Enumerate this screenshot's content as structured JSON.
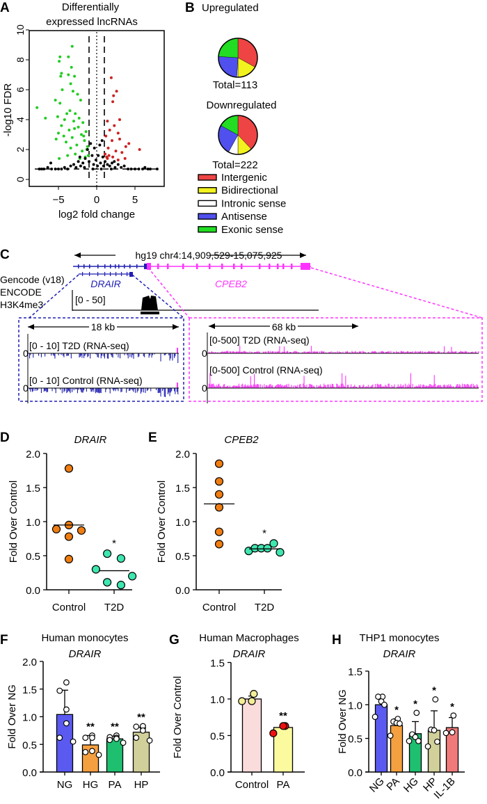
{
  "panels": {
    "A": {
      "letter": "A",
      "title_line1": "Differentially",
      "title_line2": "expressed lncRNAs"
    },
    "B": {
      "letter": "B",
      "up_title": "Upregulated",
      "up_total": "Total=113",
      "down_title": "Downregulated",
      "down_total": "Total=222"
    },
    "C": {
      "letter": "C",
      "locus": "hg19 chr4:14,909,529-15,075,925",
      "track_label_1": "Gencode (v18)",
      "track_label_2": "ENCODE",
      "track_label_3": "H3K4me3",
      "gene_left": "DRAIR",
      "gene_right": "CPEB2",
      "h3k4me3_range": "[0 - 50]",
      "left_box": {
        "span": "18 kb",
        "zero": "0",
        "track1": "[0 - 10] T2D (RNA-seq)",
        "track2": "[0 - 10] Control (RNA-seq)"
      },
      "right_box": {
        "span": "68 kb",
        "zero": "0",
        "track1": "[0-500] T2D (RNA-seq)",
        "track2": "[0-500] Control (RNA-seq)"
      },
      "colors": {
        "drair": "#1f1fb4",
        "cpeb2": "#ff33ff"
      }
    },
    "D": {
      "letter": "D"
    },
    "E": {
      "letter": "E"
    },
    "F": {
      "letter": "F"
    },
    "G": {
      "letter": "G"
    },
    "H": {
      "letter": "H"
    }
  },
  "chart_data": [
    {
      "id": "A",
      "type": "scatter",
      "xlabel": "log2 fold change",
      "ylabel": "-log10 FDR",
      "xlim": [
        -8.8,
        8.8
      ],
      "ylim": [
        0,
        10
      ],
      "xticks": [
        "-5",
        "0",
        "5"
      ],
      "yticks": [
        "0",
        "2",
        "4",
        "6",
        "8",
        "10"
      ],
      "reference_lines": {
        "vertical_dashed": [
          -1,
          1
        ],
        "vertical_dotted": [
          0
        ],
        "horizontal_dashed": [
          0.7
        ]
      },
      "series": [
        {
          "color": "#22cc22",
          "points": [
            [
              -3.2,
              8.9
            ],
            [
              -4.8,
              8.2
            ],
            [
              -3.7,
              8.2
            ],
            [
              -4.9,
              7.9
            ],
            [
              -3.3,
              7.5
            ],
            [
              -4.6,
              7.1
            ],
            [
              -3.7,
              7.0
            ],
            [
              -2.9,
              6.9
            ],
            [
              -4.7,
              6.9
            ],
            [
              -3.4,
              6.4
            ],
            [
              -4.5,
              6.0
            ],
            [
              -3.1,
              5.9
            ],
            [
              -2.5,
              5.7
            ],
            [
              -5.4,
              5.3
            ],
            [
              -4.8,
              5.1
            ],
            [
              -2.1,
              5.3
            ],
            [
              -7.8,
              4.8
            ],
            [
              -6.7,
              4.1
            ],
            [
              -3.5,
              4.6
            ],
            [
              -2.8,
              4.4
            ],
            [
              -5.1,
              4.2
            ],
            [
              -4.2,
              4.0
            ],
            [
              -3.0,
              3.9
            ],
            [
              -1.8,
              3.8
            ],
            [
              -4.6,
              3.6
            ],
            [
              -2.4,
              3.5
            ],
            [
              -3.6,
              3.3
            ],
            [
              -1.4,
              3.2
            ],
            [
              -5.0,
              3.1
            ],
            [
              -2.0,
              3.0
            ],
            [
              -3.2,
              2.8
            ],
            [
              -1.6,
              2.6
            ],
            [
              -5.3,
              2.7
            ],
            [
              -4.0,
              2.5
            ],
            [
              -2.6,
              2.3
            ],
            [
              -1.2,
              2.2
            ],
            [
              -3.4,
              2.1
            ],
            [
              -1.9,
              1.9
            ],
            [
              -2.8,
              1.7
            ],
            [
              -4.9,
              1.4
            ],
            [
              -1.5,
              1.5
            ],
            [
              -3.8,
              1.6
            ],
            [
              -2.2,
              1.4
            ],
            [
              -1.1,
              1.6
            ],
            [
              -2.3,
              4.1
            ],
            [
              -3.9,
              4.4
            ],
            [
              -1.7,
              2.9
            ],
            [
              -2.9,
              3.4
            ],
            [
              -4.3,
              2.9
            ],
            [
              -1.3,
              2.0
            ]
          ]
        },
        {
          "color": "#cc2222",
          "points": [
            [
              1.9,
              6.8
            ],
            [
              2.6,
              5.9
            ],
            [
              2.2,
              5.6
            ],
            [
              2.1,
              5.2
            ],
            [
              3.0,
              4.0
            ],
            [
              1.4,
              3.9
            ],
            [
              2.3,
              3.6
            ],
            [
              1.7,
              3.3
            ],
            [
              2.8,
              3.1
            ],
            [
              1.2,
              2.9
            ],
            [
              3.0,
              2.7
            ],
            [
              2.0,
              2.6
            ],
            [
              4.2,
              2.4
            ],
            [
              3.8,
              2.2
            ],
            [
              5.6,
              2.0
            ],
            [
              1.5,
              2.1
            ],
            [
              2.5,
              1.9
            ],
            [
              3.3,
              1.8
            ],
            [
              1.1,
              1.7
            ],
            [
              2.1,
              1.5
            ],
            [
              1.4,
              1.4
            ],
            [
              3.7,
              1.4
            ],
            [
              2.8,
              1.3
            ],
            [
              1.6,
              1.6
            ],
            [
              1.3,
              1.5
            ]
          ]
        },
        {
          "color": "#000000",
          "points": [
            [
              -7.5,
              0.7
            ],
            [
              -7.2,
              0.7
            ],
            [
              -6.9,
              0.7
            ],
            [
              -6.4,
              0.8
            ],
            [
              -5.9,
              0.7
            ],
            [
              -5.4,
              0.7
            ],
            [
              -5.0,
              0.7
            ],
            [
              -4.6,
              0.7
            ],
            [
              -4.2,
              0.8
            ],
            [
              -3.8,
              0.7
            ],
            [
              -3.4,
              0.9
            ],
            [
              -3.0,
              1.0
            ],
            [
              -2.7,
              0.8
            ],
            [
              -2.4,
              1.2
            ],
            [
              -2.1,
              0.9
            ],
            [
              -1.8,
              1.1
            ],
            [
              -1.5,
              1.4
            ],
            [
              -1.2,
              2.0
            ],
            [
              -1.0,
              1.2
            ],
            [
              -0.8,
              2.4
            ],
            [
              -0.6,
              1.6
            ],
            [
              -0.4,
              1.0
            ],
            [
              -0.3,
              2.1
            ],
            [
              -0.1,
              1.3
            ],
            [
              0.1,
              0.9
            ],
            [
              0.2,
              1.6
            ],
            [
              0.4,
              2.3
            ],
            [
              0.5,
              1.1
            ],
            [
              0.7,
              2.6
            ],
            [
              0.8,
              1.5
            ],
            [
              0.9,
              0.9
            ],
            [
              1.1,
              1.2
            ],
            [
              1.4,
              1.0
            ],
            [
              1.7,
              0.9
            ],
            [
              2.0,
              1.1
            ],
            [
              2.4,
              0.8
            ],
            [
              2.8,
              1.0
            ],
            [
              3.2,
              0.8
            ],
            [
              3.6,
              0.9
            ],
            [
              4.1,
              0.7
            ],
            [
              4.5,
              0.7
            ],
            [
              5.0,
              0.7
            ],
            [
              5.5,
              0.7
            ],
            [
              6.0,
              0.7
            ],
            [
              6.3,
              0.8
            ],
            [
              6.7,
              0.7
            ],
            [
              7.0,
              0.7
            ],
            [
              7.9,
              0.7
            ],
            [
              -0.5,
              0.7
            ],
            [
              0.6,
              0.7
            ],
            [
              -1.6,
              0.8
            ],
            [
              1.9,
              0.7
            ],
            [
              -2.2,
              1.5
            ],
            [
              2.3,
              1.2
            ],
            [
              -6.0,
              1.1
            ]
          ]
        }
      ]
    },
    {
      "id": "B",
      "type": "pie",
      "legend": [
        {
          "label": "Intergenic",
          "color": "#ee4444"
        },
        {
          "label": "Bidirectional",
          "color": "#f2f21e"
        },
        {
          "label": "Intronic sense",
          "color": "#ffffff"
        },
        {
          "label": "Antisense",
          "color": "#5050ee"
        },
        {
          "label": "Exonic sense",
          "color": "#22dd22"
        }
      ],
      "pies": [
        {
          "name": "Upregulated",
          "total": 113,
          "fractions": [
            0.33,
            0.17,
            0.01,
            0.25,
            0.24
          ]
        },
        {
          "name": "Downregulated",
          "total": 222,
          "fractions": [
            0.38,
            0.12,
            0.08,
            0.25,
            0.17
          ]
        }
      ]
    },
    {
      "id": "D",
      "type": "scatter",
      "title": "DRAIR",
      "ylabel": "Fold Over Control",
      "ylim": [
        0,
        2.0
      ],
      "yticks": [
        "0.0",
        "0.5",
        "1.0",
        "1.5",
        "2.0"
      ],
      "categories": [
        "Control",
        "T2D"
      ],
      "colors": [
        "#f07d12",
        "#3ee6b0"
      ],
      "groups": [
        [
          1.78,
          0.95,
          0.89,
          0.87,
          0.78,
          0.45
        ],
        [
          0.53,
          0.46,
          0.3,
          0.2,
          0.11,
          0.07
        ]
      ],
      "means": [
        0.95,
        0.28
      ],
      "significance": [
        "",
        "*"
      ]
    },
    {
      "id": "E",
      "type": "scatter",
      "title": "CPEB2",
      "ylabel": "Fold Over Control",
      "ylim": [
        0,
        2.0
      ],
      "yticks": [
        "0.0",
        "0.5",
        "1.0",
        "1.5",
        "2.0"
      ],
      "categories": [
        "Control",
        "T2D"
      ],
      "colors": [
        "#f07d12",
        "#3ee6b0"
      ],
      "groups": [
        [
          1.85,
          1.59,
          1.4,
          1.21,
          0.85,
          0.67
        ],
        [
          0.57,
          0.61,
          0.61,
          0.61,
          0.68,
          0.55
        ]
      ],
      "means": [
        1.26,
        0.6
      ],
      "significance": [
        "",
        "*"
      ]
    },
    {
      "id": "F",
      "type": "bar",
      "title": "Human monocytes",
      "subtitle": "DRAIR",
      "ylabel": "Fold Over NG",
      "ylim": [
        0,
        2.0
      ],
      "yticks": [
        "0.0",
        "0.5",
        "1.0",
        "1.5",
        "2.0"
      ],
      "categories": [
        "NG",
        "HG",
        "PA",
        "HP"
      ],
      "values": [
        1.04,
        0.49,
        0.6,
        0.72
      ],
      "errors": [
        0.44,
        0.17,
        0.05,
        0.09
      ],
      "colors": [
        "#5a5af0",
        "#f5a040",
        "#1fbf70",
        "#d2d09a"
      ],
      "points": [
        [
          1.62,
          1.47,
          1.13,
          0.88,
          0.62,
          0.55
        ],
        [
          0.66,
          0.62,
          0.62,
          0.38,
          0.36,
          0.31
        ],
        [
          0.66,
          0.63,
          0.62,
          0.6,
          0.58,
          0.53
        ],
        [
          0.8,
          0.82,
          0.83,
          0.75,
          0.62,
          0.57
        ]
      ],
      "point_color": "#ffffff",
      "significance": [
        "",
        "**",
        "**",
        "**"
      ]
    },
    {
      "id": "G",
      "type": "bar",
      "title": "Human Macrophages",
      "subtitle": "DRAIR",
      "ylabel": "Fold Over Control",
      "ylim": [
        0,
        1.5
      ],
      "yticks": [
        "0.0",
        "0.5",
        "1.0",
        "1.5"
      ],
      "categories": [
        "Control",
        "PA"
      ],
      "values": [
        1.0,
        0.61
      ],
      "errors": [
        0.04,
        0.04
      ],
      "colors": [
        "#fadcdc",
        "#fbfa9e"
      ],
      "points": [
        [
          1.07,
          0.97,
          0.97
        ],
        [
          0.63,
          0.63,
          0.53
        ]
      ],
      "point_colors": [
        "#f3ee96",
        "#ee1111"
      ],
      "significance": [
        "",
        "**"
      ]
    },
    {
      "id": "H",
      "type": "bar",
      "title": "THP1 monocytes",
      "subtitle": "DRAIR",
      "ylabel": "Fold Over NG",
      "ylim": [
        0,
        1.5
      ],
      "yticks": [
        "0.0",
        "0.5",
        "1.0",
        "1.5"
      ],
      "categories": [
        "NG",
        "PA",
        "HG",
        "HP",
        "IL-1B"
      ],
      "values": [
        1.0,
        0.69,
        0.57,
        0.62,
        0.66
      ],
      "errors": [
        0.13,
        0.1,
        0.18,
        0.29,
        0.15
      ],
      "colors": [
        "#5a5af0",
        "#f5a040",
        "#1fbf70",
        "#d2d09a",
        "#f07a7a"
      ],
      "points": [
        [
          1.12,
          1.12,
          1.05,
          1.0,
          0.82
        ],
        [
          0.79,
          0.75,
          0.73,
          0.72,
          0.54
        ],
        [
          0.88,
          0.56,
          0.52,
          0.46,
          0.46
        ],
        [
          1.08,
          0.63,
          0.62,
          0.45,
          0.38
        ],
        [
          0.84,
          0.59,
          0.58
        ]
      ],
      "point_color": "#ffffff",
      "significance": [
        "",
        "*",
        "*",
        "*",
        "*"
      ]
    }
  ]
}
